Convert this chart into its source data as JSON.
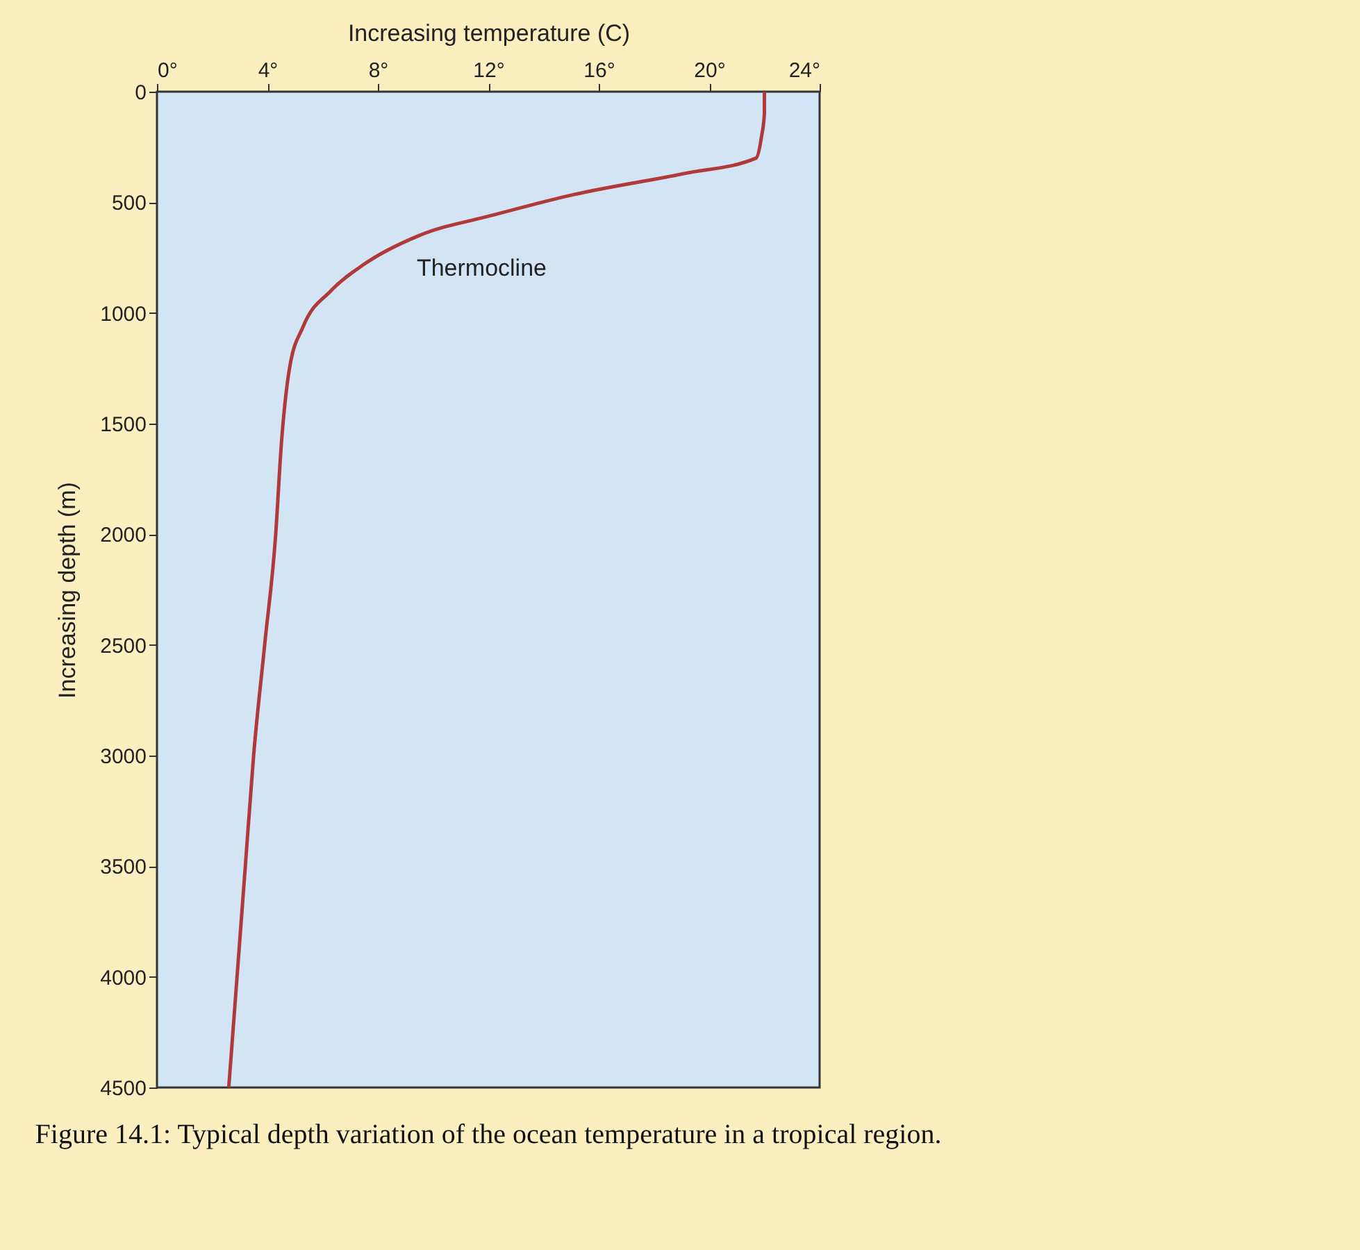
{
  "chart_data": {
    "type": "line",
    "title": "Figure 14.1: Typical depth variation of the ocean temperature in a tropical region.",
    "xlabel": "Increasing temperature (C)",
    "ylabel": "Increasing depth (m)",
    "series": [
      {
        "color": "#b03a3a",
        "x": [
          22.0,
          22.0,
          21.9,
          21.7,
          19.1,
          15.1,
          12.1,
          9.5,
          7.5,
          6.3,
          5.3,
          4.8,
          4.5,
          4.3,
          3.9,
          3.5,
          3.2,
          2.9,
          2.6
        ],
        "values": [
          0,
          100,
          200,
          300,
          370,
          465,
          560,
          650,
          780,
          900,
          1060,
          1250,
          1600,
          2000,
          2500,
          3000,
          3500,
          4000,
          4500
        ]
      }
    ],
    "xlim": [
      0,
      24
    ],
    "xticks": [
      {
        "value": 0,
        "label": "0°"
      },
      {
        "value": 4,
        "label": "4°"
      },
      {
        "value": 8,
        "label": "8°"
      },
      {
        "value": 12,
        "label": "12°"
      },
      {
        "value": 16,
        "label": "16°"
      },
      {
        "value": 20,
        "label": "20°"
      },
      {
        "value": 24,
        "label": "24°"
      }
    ],
    "ylim": [
      4500,
      0
    ],
    "yticks": [
      0,
      500,
      1000,
      1500,
      2000,
      2500,
      3000,
      3500,
      4000,
      4500
    ],
    "annotations": [
      "Thermocline"
    ],
    "grid": false,
    "marker": "none",
    "line_style": "solid"
  }
}
